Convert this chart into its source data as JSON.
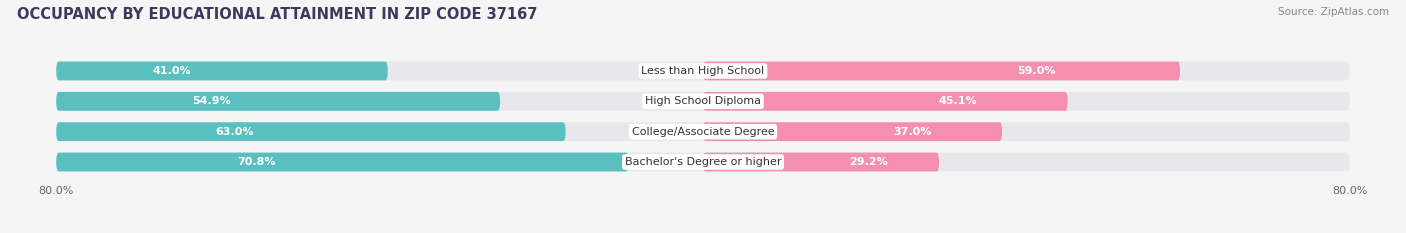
{
  "title": "OCCUPANCY BY EDUCATIONAL ATTAINMENT IN ZIP CODE 37167",
  "source": "Source: ZipAtlas.com",
  "categories": [
    "Less than High School",
    "High School Diploma",
    "College/Associate Degree",
    "Bachelor's Degree or higher"
  ],
  "owner_values": [
    41.0,
    54.9,
    63.0,
    70.8
  ],
  "renter_values": [
    59.0,
    45.1,
    37.0,
    29.2
  ],
  "owner_color": "#5ABFBF",
  "renter_color": "#F48FAF",
  "row_bg_color": "#E8E8EC",
  "background_color": "#F5F5F5",
  "title_fontsize": 10.5,
  "source_fontsize": 7.5,
  "label_fontsize": 8,
  "value_fontsize": 8,
  "tick_fontsize": 8,
  "xlim": 80.0
}
